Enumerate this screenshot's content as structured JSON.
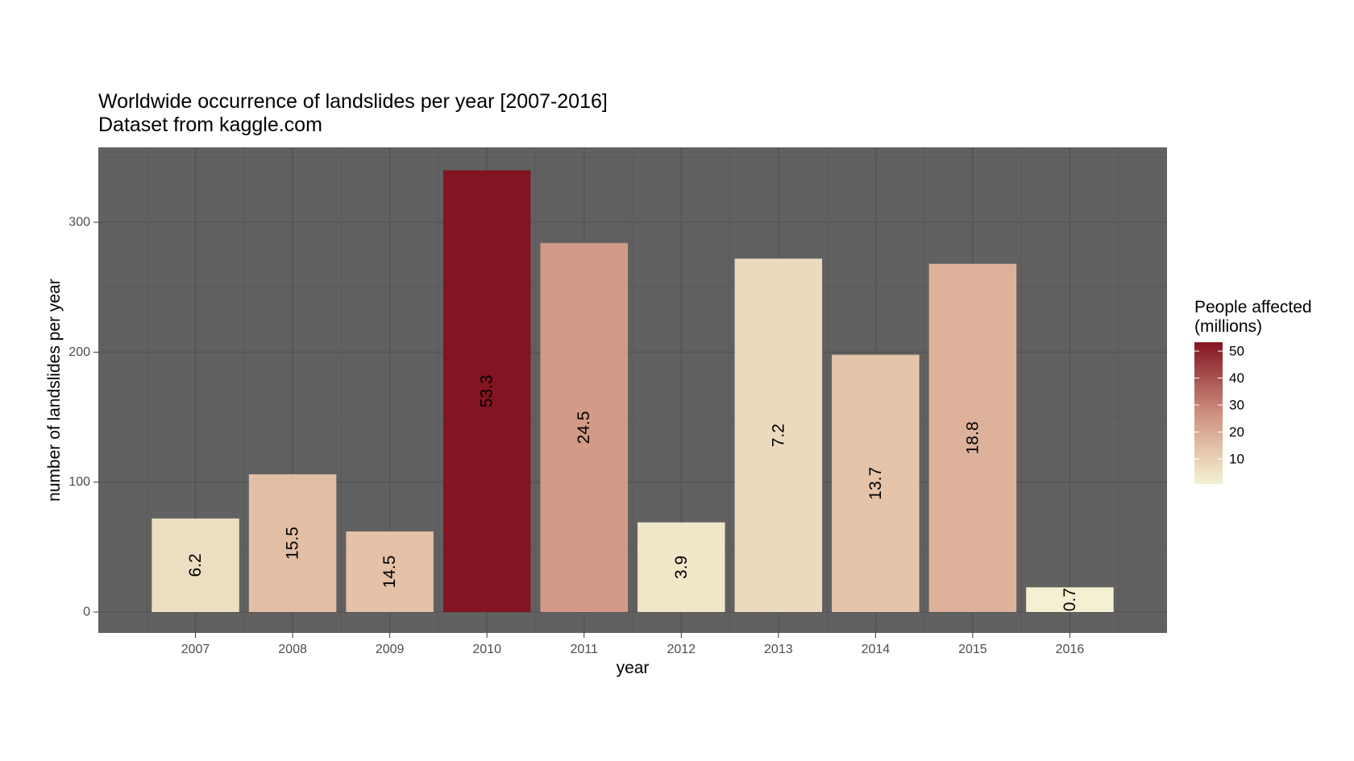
{
  "chart_data": {
    "type": "bar",
    "title": "Worldwide occurrence of landslides per year [2007-2016]",
    "subtitle": "Dataset from kaggle.com",
    "xlabel": "year",
    "ylabel": "number of landslides per year",
    "categories": [
      "2007",
      "2008",
      "2009",
      "2010",
      "2011",
      "2012",
      "2013",
      "2014",
      "2015",
      "2016"
    ],
    "values": [
      72,
      106,
      62,
      340,
      284,
      69,
      272,
      198,
      268,
      19
    ],
    "fill_values": [
      6.2,
      15.5,
      14.5,
      53.3,
      24.5,
      3.9,
      7.2,
      13.7,
      18.8,
      0.7
    ],
    "data_labels": [
      "6.2",
      "15.5",
      "14.5",
      "53.3",
      "24.5",
      "3.9",
      "7.2",
      "13.7",
      "18.8",
      "0.7"
    ],
    "ylim": [
      0,
      356
    ],
    "yticks": [
      0,
      100,
      200,
      300
    ],
    "ytick_labels": [
      "0",
      "100",
      "200",
      "300"
    ],
    "grid": true,
    "legend": {
      "title_line1": "People affected",
      "title_line2": "(millions)",
      "placement": "right",
      "range": [
        0.7,
        53.3
      ],
      "ticks": [
        10,
        20,
        30,
        40,
        50
      ],
      "tick_labels": [
        "10",
        "20",
        "30",
        "40",
        "50"
      ],
      "low_color": "#f4f1d2",
      "high_color": "#841421"
    },
    "colors": {
      "panel_background": "#616161",
      "grid_major": "#555555",
      "grid_minor": "#585858",
      "axis_text": "#4d4d4d"
    }
  }
}
